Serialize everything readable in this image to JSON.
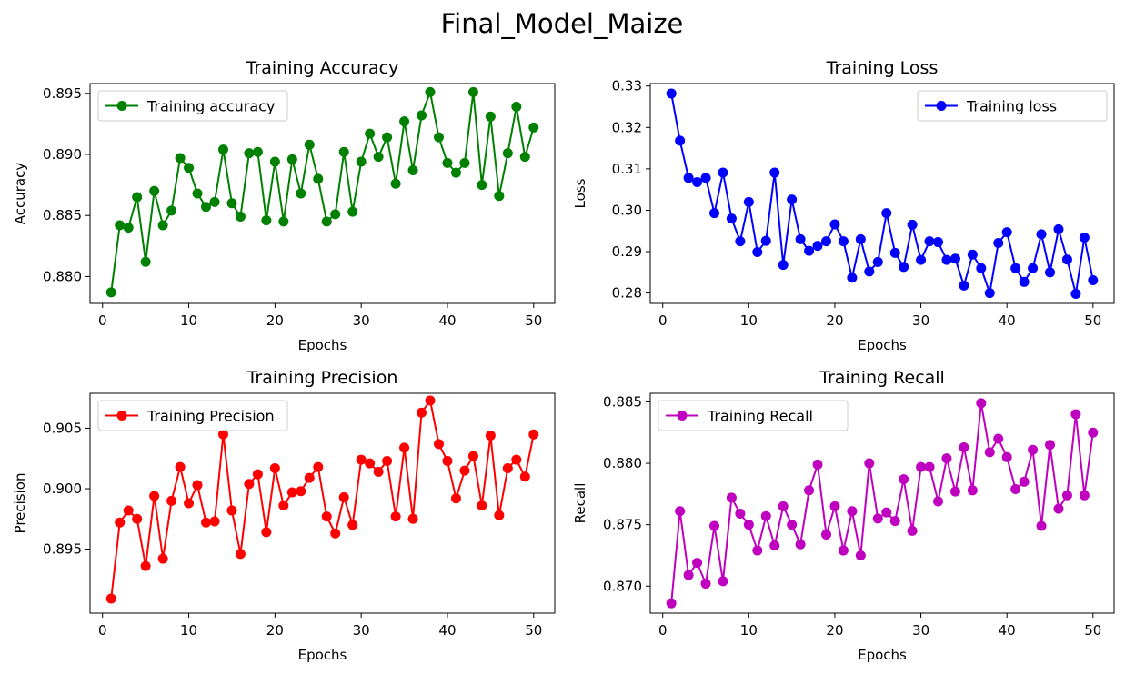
{
  "suptitle": "Final_Model_Maize",
  "chart_data": [
    {
      "type": "line",
      "title": "Training Accuracy",
      "xlabel": "Epochs",
      "ylabel": "Accuracy",
      "xlim": [
        -1.45,
        52.45
      ],
      "ylim": [
        0.8778,
        0.8958
      ],
      "xticks": [
        0,
        10,
        20,
        30,
        40,
        50
      ],
      "xtick_labels": [
        "0",
        "10",
        "20",
        "30",
        "40",
        "50"
      ],
      "yticks": [
        0.88,
        0.885,
        0.89,
        0.895
      ],
      "ytick_labels": [
        "0.880",
        "0.885",
        "0.890",
        "0.895"
      ],
      "legend_position": "upper-left",
      "grid": false,
      "color": "#008000",
      "series": [
        {
          "name": "Training accuracy",
          "x": [
            1,
            2,
            3,
            4,
            5,
            6,
            7,
            8,
            9,
            10,
            11,
            12,
            13,
            14,
            15,
            16,
            17,
            18,
            19,
            20,
            21,
            22,
            23,
            24,
            25,
            26,
            27,
            28,
            29,
            30,
            31,
            32,
            33,
            34,
            35,
            36,
            37,
            38,
            39,
            40,
            41,
            42,
            43,
            44,
            45,
            46,
            47,
            48,
            49,
            50
          ],
          "y": [
            0.8787,
            0.8842,
            0.884,
            0.8865,
            0.8812,
            0.887,
            0.8842,
            0.8854,
            0.8897,
            0.8889,
            0.8868,
            0.8857,
            0.8861,
            0.8904,
            0.886,
            0.8849,
            0.8901,
            0.8902,
            0.8846,
            0.8894,
            0.8845,
            0.8896,
            0.8868,
            0.8908,
            0.888,
            0.8845,
            0.8851,
            0.8902,
            0.8853,
            0.8894,
            0.8917,
            0.8898,
            0.8914,
            0.8876,
            0.8927,
            0.8887,
            0.8932,
            0.8951,
            0.8914,
            0.8893,
            0.8885,
            0.8893,
            0.8951,
            0.8875,
            0.8931,
            0.8866,
            0.8901,
            0.8939,
            0.8898,
            0.8922
          ]
        }
      ]
    },
    {
      "type": "line",
      "title": "Training Loss",
      "xlabel": "Epochs",
      "ylabel": "Loss",
      "xlim": [
        -1.45,
        52.45
      ],
      "ylim": [
        0.2775,
        0.3306
      ],
      "xticks": [
        0,
        10,
        20,
        30,
        40,
        50
      ],
      "xtick_labels": [
        "0",
        "10",
        "20",
        "30",
        "40",
        "50"
      ],
      "yticks": [
        0.28,
        0.29,
        0.3,
        0.31,
        0.32,
        0.33
      ],
      "ytick_labels": [
        "0.28",
        "0.29",
        "0.30",
        "0.31",
        "0.32",
        "0.33"
      ],
      "legend_position": "upper-right",
      "grid": false,
      "color": "#0000ff",
      "series": [
        {
          "name": "Training loss",
          "x": [
            1,
            2,
            3,
            4,
            5,
            6,
            7,
            8,
            9,
            10,
            11,
            12,
            13,
            14,
            15,
            16,
            17,
            18,
            19,
            20,
            21,
            22,
            23,
            24,
            25,
            26,
            27,
            28,
            29,
            30,
            31,
            32,
            33,
            34,
            35,
            36,
            37,
            38,
            39,
            40,
            41,
            42,
            43,
            44,
            45,
            46,
            47,
            48,
            49,
            50
          ],
          "y": [
            0.3282,
            0.3168,
            0.3078,
            0.3068,
            0.3078,
            0.2993,
            0.3091,
            0.298,
            0.2925,
            0.302,
            0.2899,
            0.2926,
            0.3091,
            0.2868,
            0.3026,
            0.293,
            0.2902,
            0.2914,
            0.2925,
            0.2966,
            0.2925,
            0.2837,
            0.293,
            0.2852,
            0.2875,
            0.2993,
            0.2897,
            0.2863,
            0.2965,
            0.288,
            0.2925,
            0.2923,
            0.288,
            0.2883,
            0.2818,
            0.2893,
            0.286,
            0.28,
            0.2921,
            0.2947,
            0.286,
            0.2827,
            0.286,
            0.2942,
            0.285,
            0.2954,
            0.2881,
            0.2798,
            0.2934,
            0.2831
          ]
        }
      ]
    },
    {
      "type": "line",
      "title": "Training Precision",
      "xlabel": "Epochs",
      "ylabel": "Precision",
      "xlim": [
        -1.45,
        52.45
      ],
      "ylim": [
        0.8897,
        0.9079
      ],
      "xticks": [
        0,
        10,
        20,
        30,
        40,
        50
      ],
      "xtick_labels": [
        "0",
        "10",
        "20",
        "30",
        "40",
        "50"
      ],
      "yticks": [
        0.895,
        0.9,
        0.905
      ],
      "ytick_labels": [
        "0.895",
        "0.900",
        "0.905"
      ],
      "legend_position": "upper-left",
      "grid": false,
      "color": "#ff0000",
      "series": [
        {
          "name": "Training Precision",
          "x": [
            1,
            2,
            3,
            4,
            5,
            6,
            7,
            8,
            9,
            10,
            11,
            12,
            13,
            14,
            15,
            16,
            17,
            18,
            19,
            20,
            21,
            22,
            23,
            24,
            25,
            26,
            27,
            28,
            29,
            30,
            31,
            32,
            33,
            34,
            35,
            36,
            37,
            38,
            39,
            40,
            41,
            42,
            43,
            44,
            45,
            46,
            47,
            48,
            49,
            50
          ],
          "y": [
            0.8909,
            0.8972,
            0.8982,
            0.8975,
            0.8936,
            0.8994,
            0.8942,
            0.899,
            0.9018,
            0.8988,
            0.9003,
            0.8972,
            0.8973,
            0.9045,
            0.8982,
            0.8946,
            0.9004,
            0.9012,
            0.8964,
            0.9017,
            0.8986,
            0.8997,
            0.8998,
            0.9009,
            0.9018,
            0.8977,
            0.8963,
            0.8993,
            0.897,
            0.9024,
            0.9021,
            0.9014,
            0.9023,
            0.8977,
            0.9034,
            0.8975,
            0.9063,
            0.9073,
            0.9037,
            0.9023,
            0.8992,
            0.9015,
            0.9027,
            0.8986,
            0.9044,
            0.8978,
            0.9017,
            0.9024,
            0.901,
            0.9045
          ]
        }
      ]
    },
    {
      "type": "line",
      "title": "Training Recall",
      "xlabel": "Epochs",
      "ylabel": "Recall",
      "xlim": [
        -1.45,
        52.45
      ],
      "ylim": [
        0.8678,
        0.8857
      ],
      "xticks": [
        0,
        10,
        20,
        30,
        40,
        50
      ],
      "xtick_labels": [
        "0",
        "10",
        "20",
        "30",
        "40",
        "50"
      ],
      "yticks": [
        0.87,
        0.875,
        0.88,
        0.885
      ],
      "ytick_labels": [
        "0.870",
        "0.875",
        "0.880",
        "0.885"
      ],
      "legend_position": "upper-left",
      "grid": false,
      "color": "#bf00bf",
      "series": [
        {
          "name": "Training Recall",
          "x": [
            1,
            2,
            3,
            4,
            5,
            6,
            7,
            8,
            9,
            10,
            11,
            12,
            13,
            14,
            15,
            16,
            17,
            18,
            19,
            20,
            21,
            22,
            23,
            24,
            25,
            26,
            27,
            28,
            29,
            30,
            31,
            32,
            33,
            34,
            35,
            36,
            37,
            38,
            39,
            40,
            41,
            42,
            43,
            44,
            45,
            46,
            47,
            48,
            49,
            50
          ],
          "y": [
            0.8686,
            0.8761,
            0.8709,
            0.8719,
            0.8702,
            0.8749,
            0.8704,
            0.8772,
            0.8759,
            0.875,
            0.8729,
            0.8757,
            0.8733,
            0.8765,
            0.875,
            0.8734,
            0.8778,
            0.8799,
            0.8742,
            0.8765,
            0.8729,
            0.8761,
            0.8725,
            0.88,
            0.8755,
            0.876,
            0.8753,
            0.8787,
            0.8745,
            0.8797,
            0.8797,
            0.8769,
            0.8804,
            0.8777,
            0.8813,
            0.8778,
            0.8849,
            0.8809,
            0.882,
            0.8805,
            0.8779,
            0.8785,
            0.8811,
            0.8749,
            0.8815,
            0.8763,
            0.8774,
            0.884,
            0.8774,
            0.8825
          ]
        }
      ]
    }
  ]
}
